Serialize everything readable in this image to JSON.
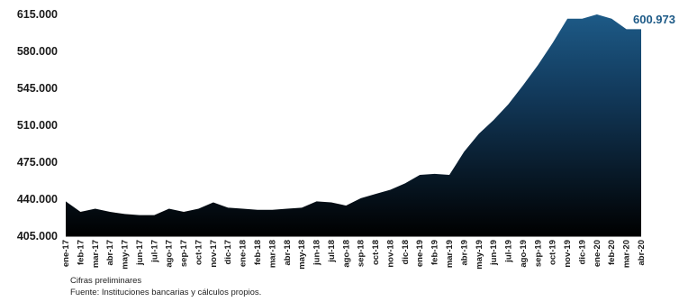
{
  "chart_data": {
    "type": "area",
    "categories": [
      "ene-17",
      "feb-17",
      "mar-17",
      "abr-17",
      "may-17",
      "jun-17",
      "jul-17",
      "ago-17",
      "sep-17",
      "oct-17",
      "nov-17",
      "dic-17",
      "ene-18",
      "feb-18",
      "mar-18",
      "abr-18",
      "may-18",
      "jun-18",
      "jul-18",
      "ago-18",
      "sep-18",
      "oct-18",
      "nov-18",
      "dic-18",
      "ene-19",
      "feb-19",
      "mar-19",
      "abr-19",
      "may-19",
      "jun-19",
      "jul-19",
      "ago-19",
      "sep-19",
      "oct-19",
      "nov-19",
      "dic-19",
      "ene-20",
      "feb-20",
      "mar-20",
      "abr-20"
    ],
    "values": [
      438,
      428,
      431,
      428,
      426,
      425,
      425,
      431,
      428,
      431,
      437,
      432,
      431,
      430,
      430,
      431,
      432,
      438,
      437,
      434,
      441,
      445,
      449,
      455,
      463,
      464,
      463,
      485,
      502,
      515,
      530,
      548,
      567,
      588,
      611,
      611,
      615,
      611,
      601,
      601
    ],
    "ytick_labels": [
      "405.000",
      "440.000",
      "475.000",
      "510.000",
      "545.000",
      "580.000",
      "615.000"
    ],
    "yticks": [
      405,
      440,
      475,
      510,
      545,
      580,
      615
    ],
    "ylim": [
      405,
      615
    ],
    "end_label": "600.973",
    "grid": false,
    "legend": "none",
    "colors": {
      "top": "#1d5a87",
      "bottom": "#000000",
      "end_label": "#1d5a87"
    }
  },
  "notes": {
    "line1": "Cifras preliminares",
    "line2": "Fuente: Instituciones bancarias y cálculos propios."
  }
}
